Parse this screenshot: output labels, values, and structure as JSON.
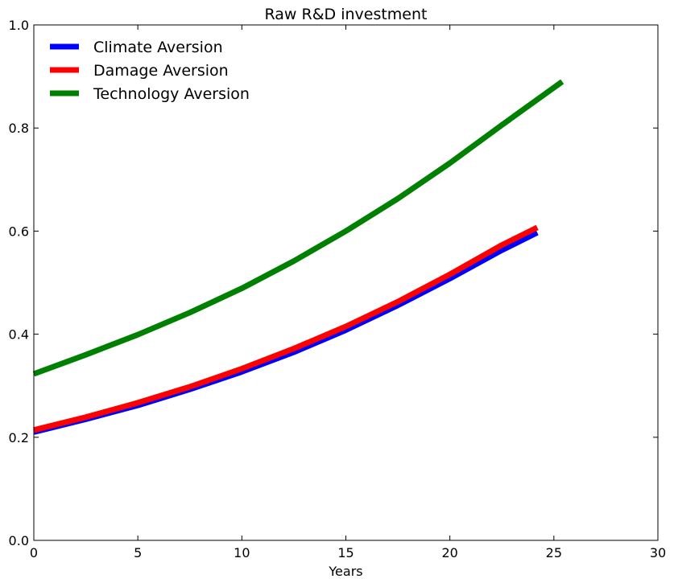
{
  "chart_data": {
    "type": "line",
    "title": "Raw R&D investment",
    "xlabel": "Years",
    "ylabel": "",
    "xlim": [
      0,
      30
    ],
    "ylim": [
      0,
      1.0
    ],
    "xticks": [
      0,
      5,
      10,
      15,
      20,
      25,
      30
    ],
    "yticks": [
      0.0,
      0.2,
      0.4,
      0.6,
      0.8,
      1.0
    ],
    "xtick_labels": [
      "0",
      "5",
      "10",
      "15",
      "20",
      "25",
      "30"
    ],
    "ytick_labels": [
      "0.0",
      "0.2",
      "0.4",
      "0.6",
      "0.8",
      "1.0"
    ],
    "grid": false,
    "legend_position": "top-left",
    "series": [
      {
        "name": "Climate Aversion",
        "color": "#0000ff",
        "x": [
          0,
          2.5,
          5,
          7.5,
          10,
          12.5,
          15,
          17.5,
          20,
          22.5,
          24.2
        ],
        "y": [
          0.21,
          0.235,
          0.262,
          0.293,
          0.327,
          0.365,
          0.408,
          0.456,
          0.508,
          0.563,
          0.597
        ]
      },
      {
        "name": "Damage Aversion",
        "color": "#ff0000",
        "x": [
          0,
          2.5,
          5,
          7.5,
          10,
          12.5,
          15,
          17.5,
          20,
          22.5,
          24.2
        ],
        "y": [
          0.214,
          0.239,
          0.267,
          0.298,
          0.333,
          0.372,
          0.415,
          0.463,
          0.516,
          0.573,
          0.607
        ]
      },
      {
        "name": "Technology Aversion",
        "color": "#008000",
        "x": [
          0,
          2.5,
          5,
          7.5,
          10,
          12.5,
          15,
          17.5,
          20,
          22.5,
          25.4
        ],
        "y": [
          0.323,
          0.36,
          0.399,
          0.442,
          0.489,
          0.542,
          0.6,
          0.663,
          0.732,
          0.806,
          0.89
        ]
      }
    ]
  }
}
